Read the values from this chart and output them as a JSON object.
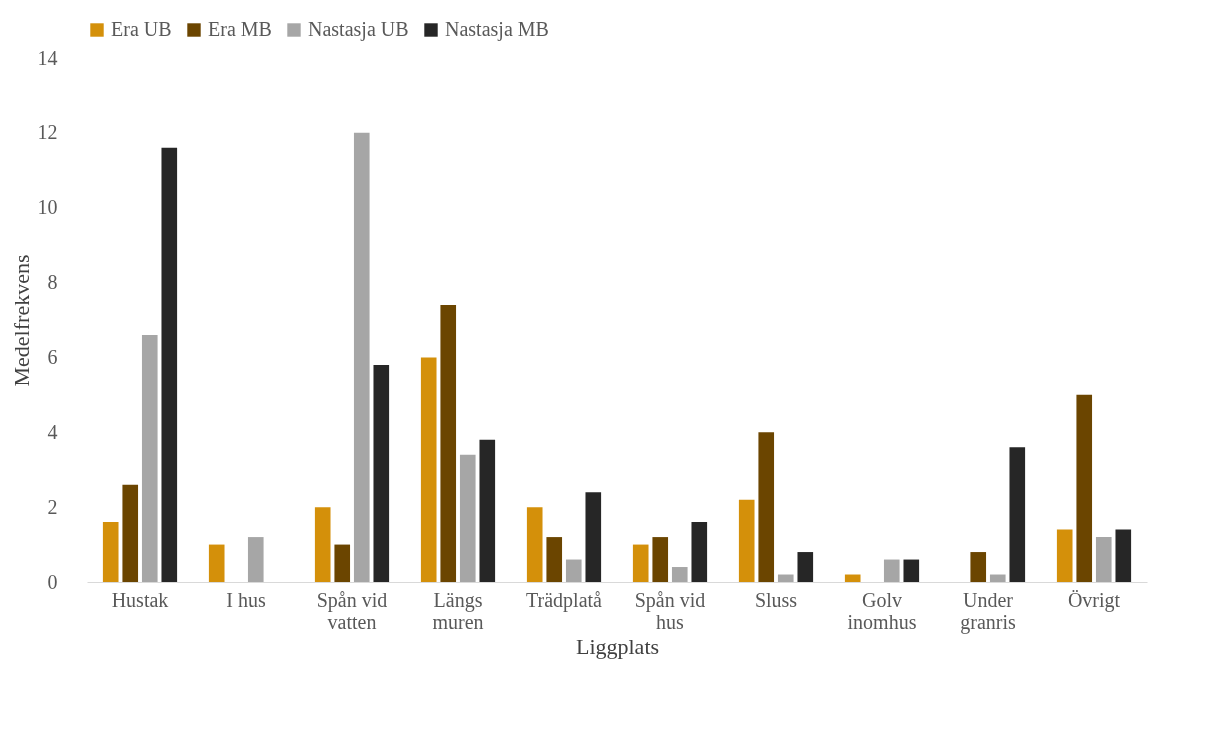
{
  "chart_data": {
    "type": "bar",
    "xlabel": "Liggplats",
    "ylabel": "Medelfrekvens",
    "categories": [
      "Hustak",
      "I hus",
      "Spån vid vatten",
      "Längs muren",
      "Trädplatå",
      "Spån vid hus",
      "Sluss",
      "Golv inomhus",
      "Under granris",
      "Övrigt"
    ],
    "series": [
      {
        "name": "Era UB",
        "color": "#d4900a",
        "values": [
          1.6,
          1.0,
          2.0,
          6.0,
          2.0,
          1.0,
          2.2,
          0.2,
          0,
          1.4
        ]
      },
      {
        "name": "Era MB",
        "color": "#6b4500",
        "values": [
          2.6,
          0,
          1.0,
          7.4,
          1.2,
          1.2,
          4.0,
          0,
          0.8,
          5.0
        ]
      },
      {
        "name": "Nastasja UB",
        "color": "#a6a6a6",
        "values": [
          6.6,
          1.2,
          12.0,
          3.4,
          0.6,
          0.4,
          0.2,
          0.6,
          0.2,
          1.2
        ]
      },
      {
        "name": "Nastasja MB",
        "color": "#262626",
        "values": [
          11.6,
          0,
          5.8,
          3.8,
          2.4,
          1.6,
          0.8,
          0.6,
          3.6,
          1.4
        ]
      }
    ],
    "ylim": [
      0,
      14
    ],
    "yticks": [
      0,
      2,
      4,
      6,
      8,
      10,
      12,
      14
    ],
    "grid": false,
    "legend": "top"
  }
}
